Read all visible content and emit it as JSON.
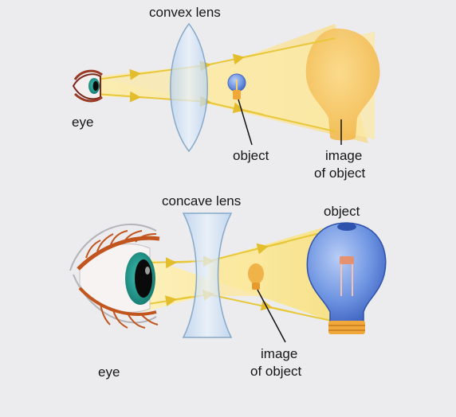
{
  "convex_section": {
    "lens_label": "convex lens",
    "eye_label": "eye",
    "object_label": "object",
    "image_label_line1": "image",
    "image_label_line2": "of object"
  },
  "concave_section": {
    "lens_label": "concave lens",
    "eye_label": "eye",
    "object_label": "object",
    "image_label_line1": "image",
    "image_label_line2": "of object"
  },
  "colors": {
    "background": "#ececee",
    "light_beam": "#fbe9a6",
    "ray": "#e8c83a",
    "convex_image_bulb": "#f7c866",
    "lens_glass": "#cfe0f2",
    "lens_edge": "#7da3c8",
    "object_bulb": "#5d86db",
    "iris": "#2fa39a",
    "eyelash": "#c2551e"
  }
}
